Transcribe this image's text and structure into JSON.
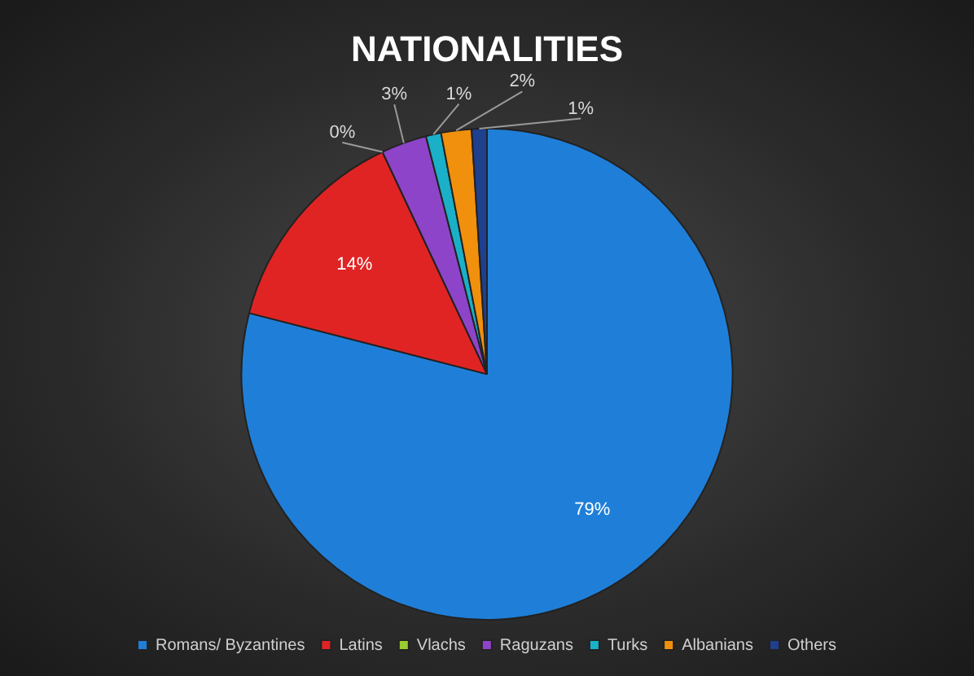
{
  "chart_data": {
    "type": "pie",
    "title": "NATIONALITIES",
    "categories": [
      "Romans/ Byzantines",
      "Latins",
      "Vlachs",
      "Raguzans",
      "Turks",
      "Albanians",
      "Others"
    ],
    "values": [
      79,
      14,
      0,
      3,
      1,
      2,
      1
    ],
    "colors": [
      "#1f7fd8",
      "#e02424",
      "#9acd32",
      "#8e44c8",
      "#1ab0c8",
      "#f0900c",
      "#1f3f8f"
    ],
    "value_labels": [
      "79%",
      "14%",
      "0%",
      "3%",
      "1%",
      "2%",
      "1%"
    ],
    "legend": "bottom"
  }
}
